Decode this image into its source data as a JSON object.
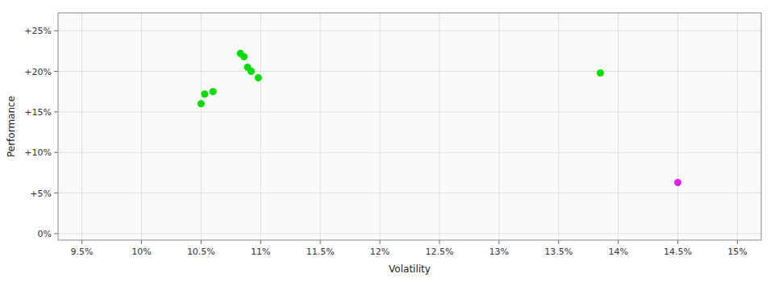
{
  "chart_data": {
    "type": "scatter",
    "xlabel": "Volatility",
    "ylabel": "Performance",
    "xlim": [
      0.093,
      0.152
    ],
    "ylim": [
      -0.008,
      0.272
    ],
    "xticks": [
      {
        "value": 0.095,
        "label": "9.5%"
      },
      {
        "value": 0.1,
        "label": "10%"
      },
      {
        "value": 0.105,
        "label": "10.5%"
      },
      {
        "value": 0.11,
        "label": "11%"
      },
      {
        "value": 0.115,
        "label": "11.5%"
      },
      {
        "value": 0.12,
        "label": "12%"
      },
      {
        "value": 0.125,
        "label": "12.5%"
      },
      {
        "value": 0.13,
        "label": "13%"
      },
      {
        "value": 0.135,
        "label": "13.5%"
      },
      {
        "value": 0.14,
        "label": "14%"
      },
      {
        "value": 0.145,
        "label": "14.5%"
      },
      {
        "value": 0.15,
        "label": "15%"
      }
    ],
    "yticks": [
      {
        "value": 0.0,
        "label": "0%"
      },
      {
        "value": 0.05,
        "label": "+5%"
      },
      {
        "value": 0.1,
        "label": "+10%"
      },
      {
        "value": 0.15,
        "label": "+15%"
      },
      {
        "value": 0.2,
        "label": "+20%"
      },
      {
        "value": 0.25,
        "label": "+25%"
      }
    ],
    "grid": true,
    "series": [
      {
        "color": "#00dd00",
        "x": [
          0.1053,
          0.106,
          0.105,
          0.1083,
          0.1086,
          0.1089,
          0.1092,
          0.1098,
          0.1385
        ],
        "values": [
          0.172,
          0.175,
          0.16,
          0.222,
          0.218,
          0.205,
          0.2,
          0.192,
          0.198
        ]
      },
      {
        "color": "#dd22dd",
        "x": [
          0.145
        ],
        "values": [
          0.063
        ]
      }
    ]
  }
}
